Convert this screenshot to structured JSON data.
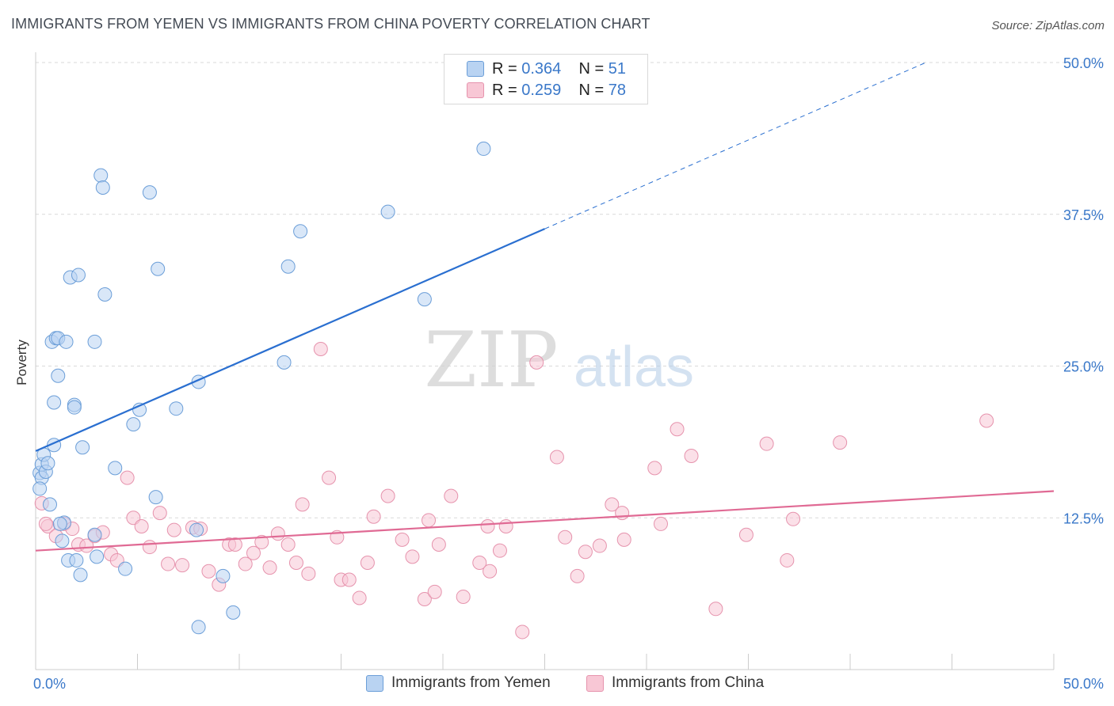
{
  "title": "IMMIGRANTS FROM YEMEN VS IMMIGRANTS FROM CHINA POVERTY CORRELATION CHART",
  "source": "Source: ZipAtlas.com",
  "watermark": {
    "zip": "ZIP",
    "atlas": "atlas"
  },
  "legend": {
    "r_label": "R =",
    "n_label": "N =",
    "yemen": {
      "r": "0.364",
      "n": "51"
    },
    "china": {
      "r": "0.259",
      "n": "78"
    }
  },
  "bottom_legend": {
    "yemen": "Immigrants from Yemen",
    "china": "Immigrants from China"
  },
  "colors": {
    "yemen_fill": "#b9d3f2",
    "yemen_stroke": "#6b9ed8",
    "yemen_line": "#2a6fd0",
    "china_fill": "#f8c7d5",
    "china_stroke": "#e693ad",
    "china_line": "#e06a94",
    "axis_text": "#3a78c9",
    "grid": "#d9d9d9"
  },
  "chart_data": {
    "type": "scatter",
    "title": "IMMIGRANTS FROM YEMEN VS IMMIGRANTS FROM CHINA POVERTY CORRELATION CHART",
    "xlabel": "",
    "ylabel": "Poverty",
    "xlim": [
      0,
      50
    ],
    "ylim": [
      0,
      50
    ],
    "x_tick_labels": [
      "0.0%",
      "50.0%"
    ],
    "y_ticks": [
      12.5,
      25.0,
      37.5,
      50.0
    ],
    "y_tick_labels": [
      "12.5%",
      "25.0%",
      "37.5%",
      "50.0%"
    ],
    "series": [
      {
        "name": "Immigrants from Yemen",
        "r": 0.364,
        "n": 51,
        "trend": {
          "x0": 0,
          "y0": 18.0,
          "x1": 25,
          "y1": 36.3,
          "dash_x1": 50,
          "dash_y1": 54.6
        },
        "points": [
          [
            0.2,
            16.2
          ],
          [
            0.3,
            15.8
          ],
          [
            0.3,
            16.9
          ],
          [
            0.4,
            17.7
          ],
          [
            0.5,
            16.3
          ],
          [
            0.6,
            17.0
          ],
          [
            0.7,
            13.6
          ],
          [
            0.8,
            27.0
          ],
          [
            0.9,
            18.5
          ],
          [
            0.9,
            22.0
          ],
          [
            1.0,
            27.3
          ],
          [
            1.1,
            27.3
          ],
          [
            1.1,
            24.2
          ],
          [
            1.3,
            10.6
          ],
          [
            1.4,
            12.1
          ],
          [
            1.5,
            27.0
          ],
          [
            1.6,
            9.0
          ],
          [
            1.7,
            32.3
          ],
          [
            1.9,
            21.8
          ],
          [
            1.9,
            21.6
          ],
          [
            2.0,
            9.0
          ],
          [
            2.1,
            32.5
          ],
          [
            2.2,
            7.8
          ],
          [
            2.3,
            18.3
          ],
          [
            2.9,
            27.0
          ],
          [
            2.9,
            11.1
          ],
          [
            3.0,
            9.3
          ],
          [
            3.2,
            40.7
          ],
          [
            3.3,
            39.7
          ],
          [
            3.4,
            30.9
          ],
          [
            3.9,
            16.6
          ],
          [
            4.4,
            8.3
          ],
          [
            4.8,
            20.2
          ],
          [
            5.1,
            21.4
          ],
          [
            5.6,
            39.3
          ],
          [
            5.9,
            14.2
          ],
          [
            6.0,
            33.0
          ],
          [
            6.9,
            21.5
          ],
          [
            7.9,
            11.5
          ],
          [
            8.0,
            23.7
          ],
          [
            8.0,
            3.5
          ],
          [
            9.2,
            7.7
          ],
          [
            9.7,
            4.7
          ],
          [
            12.2,
            25.3
          ],
          [
            12.4,
            33.2
          ],
          [
            13.0,
            36.1
          ],
          [
            17.3,
            37.7
          ],
          [
            19.1,
            30.5
          ],
          [
            22.0,
            42.9
          ],
          [
            1.2,
            12.0
          ],
          [
            0.2,
            14.9
          ]
        ]
      },
      {
        "name": "Immigrants from China",
        "r": 0.259,
        "n": 78,
        "trend": {
          "x0": 0,
          "y0": 9.8,
          "x1": 50,
          "y1": 14.7
        },
        "points": [
          [
            0.3,
            13.7
          ],
          [
            0.6,
            11.8
          ],
          [
            1.0,
            11.0
          ],
          [
            1.4,
            12.0
          ],
          [
            1.8,
            11.6
          ],
          [
            2.1,
            10.3
          ],
          [
            2.5,
            10.2
          ],
          [
            2.9,
            11.0
          ],
          [
            3.3,
            11.3
          ],
          [
            3.7,
            9.5
          ],
          [
            4.0,
            9.0
          ],
          [
            4.5,
            15.8
          ],
          [
            4.8,
            12.5
          ],
          [
            5.2,
            11.8
          ],
          [
            5.6,
            10.1
          ],
          [
            6.1,
            12.9
          ],
          [
            6.5,
            8.7
          ],
          [
            6.8,
            11.5
          ],
          [
            7.2,
            8.6
          ],
          [
            7.7,
            11.7
          ],
          [
            8.1,
            11.6
          ],
          [
            8.5,
            8.1
          ],
          [
            9.0,
            7.0
          ],
          [
            9.5,
            10.3
          ],
          [
            9.8,
            10.3
          ],
          [
            10.3,
            8.7
          ],
          [
            10.7,
            9.6
          ],
          [
            11.1,
            10.5
          ],
          [
            11.5,
            8.4
          ],
          [
            11.9,
            11.2
          ],
          [
            12.4,
            10.3
          ],
          [
            12.8,
            8.8
          ],
          [
            13.1,
            13.6
          ],
          [
            13.4,
            7.9
          ],
          [
            14.0,
            26.4
          ],
          [
            14.4,
            15.8
          ],
          [
            14.8,
            10.9
          ],
          [
            15.0,
            7.4
          ],
          [
            15.4,
            7.4
          ],
          [
            15.9,
            5.9
          ],
          [
            16.3,
            8.8
          ],
          [
            16.6,
            12.6
          ],
          [
            17.3,
            14.3
          ],
          [
            18.0,
            10.7
          ],
          [
            18.5,
            9.3
          ],
          [
            19.1,
            5.8
          ],
          [
            19.3,
            12.3
          ],
          [
            19.6,
            6.4
          ],
          [
            19.8,
            10.3
          ],
          [
            20.4,
            14.3
          ],
          [
            21.0,
            6.0
          ],
          [
            21.8,
            8.8
          ],
          [
            22.2,
            11.8
          ],
          [
            22.3,
            8.1
          ],
          [
            22.8,
            9.8
          ],
          [
            23.1,
            11.8
          ],
          [
            23.9,
            3.1
          ],
          [
            24.6,
            25.3
          ],
          [
            25.6,
            17.5
          ],
          [
            26.0,
            10.9
          ],
          [
            26.6,
            7.7
          ],
          [
            27.0,
            9.7
          ],
          [
            27.7,
            10.2
          ],
          [
            28.3,
            13.6
          ],
          [
            28.8,
            12.9
          ],
          [
            28.9,
            10.7
          ],
          [
            30.4,
            16.6
          ],
          [
            30.7,
            12.0
          ],
          [
            31.5,
            19.8
          ],
          [
            32.2,
            17.6
          ],
          [
            33.4,
            5.0
          ],
          [
            34.9,
            11.1
          ],
          [
            35.9,
            18.6
          ],
          [
            36.9,
            9.0
          ],
          [
            37.2,
            12.4
          ],
          [
            39.5,
            18.7
          ],
          [
            46.7,
            20.5
          ],
          [
            0.5,
            12.0
          ]
        ]
      }
    ]
  }
}
